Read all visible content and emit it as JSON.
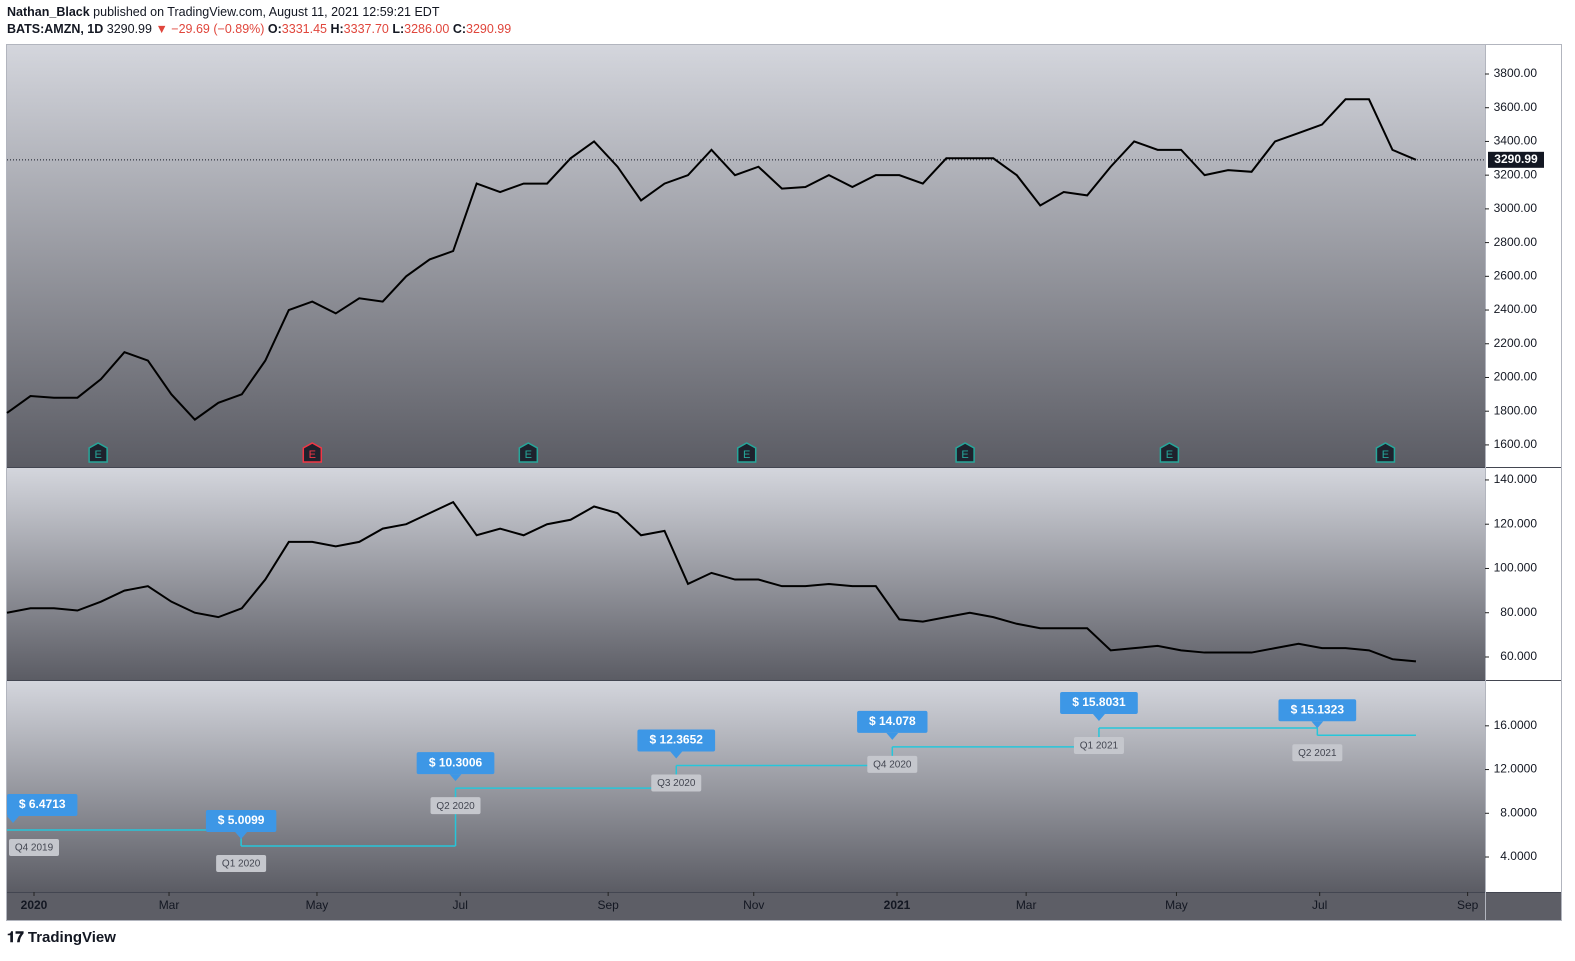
{
  "header": {
    "author": "Nathan_Black",
    "published": "published on TradingView.com, August 11, 2021 12:59:21 EDT",
    "symbol": "BATS:AMZN, 1D",
    "last": "3290.99",
    "change": "▼ −29.69 (−0.89%)",
    "ohlc": [
      {
        "label": "O:",
        "value": "3331.45"
      },
      {
        "label": "H:",
        "value": "3337.70"
      },
      {
        "label": "L:",
        "value": "3286.00"
      },
      {
        "label": "C:",
        "value": "3290.99"
      }
    ]
  },
  "footer": {
    "brand": "TradingView"
  },
  "xaxis": {
    "xlim": [
      0,
      62.94
    ],
    "xticks": [
      {
        "value": 1.15,
        "label": "2020"
      },
      {
        "value": 6.9,
        "label": "Mar"
      },
      {
        "value": 13.2,
        "label": "May"
      },
      {
        "value": 19.3,
        "label": "Jul"
      },
      {
        "value": 25.6,
        "label": "Sep"
      },
      {
        "value": 31.8,
        "label": "Nov"
      },
      {
        "value": 37.9,
        "label": "2021"
      },
      {
        "value": 43.4,
        "label": "Mar"
      },
      {
        "value": 49.8,
        "label": "May"
      },
      {
        "value": 55.9,
        "label": "Jul"
      },
      {
        "value": 62.2,
        "label": "Sep"
      }
    ]
  },
  "chart_data": [
    {
      "type": "line",
      "color": "#000000",
      "values": [
        1790,
        1890,
        1880,
        1880,
        1990,
        2150,
        2100,
        1900,
        1750,
        1850,
        1900,
        2100,
        2400,
        2450,
        2380,
        2470,
        2450,
        2600,
        2700,
        2750,
        3150,
        3100,
        3150,
        3150,
        3300,
        3400,
        3250,
        3050,
        3150,
        3200,
        3350,
        3200,
        3250,
        3120,
        3130,
        3200,
        3130,
        3200,
        3200,
        3150,
        3300,
        3300,
        3300,
        3200,
        3020,
        3100,
        3080,
        3250,
        3400,
        3350,
        3350,
        3200,
        3230,
        3220,
        3400,
        3450,
        3500,
        3650,
        3650,
        3350,
        3290.99
      ],
      "ylim": [
        1469,
        3972
      ],
      "yticks": [
        {
          "value": 1600,
          "label": "1600.00"
        },
        {
          "value": 1800,
          "label": "1800.00"
        },
        {
          "value": 2000,
          "label": "2000.00"
        },
        {
          "value": 2200,
          "label": "2200.00"
        },
        {
          "value": 2400,
          "label": "2400.00"
        },
        {
          "value": 2600,
          "label": "2600.00"
        },
        {
          "value": 2800,
          "label": "2800.00"
        },
        {
          "value": 3000,
          "label": "3000.00"
        },
        {
          "value": 3200,
          "label": "3200.00"
        },
        {
          "value": 3400,
          "label": "3400.00"
        },
        {
          "value": 3600,
          "label": "3600.00"
        },
        {
          "value": 3800,
          "label": "3800.00"
        }
      ],
      "earnings": [
        {
          "x": 3.88,
          "label": "E",
          "color": "#26a69a"
        },
        {
          "x": 13.0,
          "label": "E",
          "color": "#f23645"
        },
        {
          "x": 22.2,
          "label": "E",
          "color": "#26a69a"
        },
        {
          "x": 31.5,
          "label": "E",
          "color": "#26a69a"
        },
        {
          "x": 40.8,
          "label": "E",
          "color": "#26a69a"
        },
        {
          "x": 49.5,
          "label": "E",
          "color": "#26a69a"
        },
        {
          "x": 58.7,
          "label": "E",
          "color": "#26a69a"
        }
      ]
    },
    {
      "type": "line",
      "color": "#000000",
      "values": [
        80,
        82,
        82,
        81,
        85,
        90,
        92,
        85,
        80,
        78,
        82,
        95,
        112,
        112,
        110,
        112,
        118,
        120,
        125,
        130,
        115,
        118,
        115,
        120,
        122,
        128,
        125,
        115,
        117,
        93,
        98,
        95,
        95,
        92,
        92,
        93,
        92,
        92,
        77,
        76,
        78,
        80,
        78,
        75,
        73,
        73,
        73,
        63,
        64,
        65,
        63,
        62,
        62,
        62,
        64,
        66,
        64,
        64,
        63,
        59,
        58
      ],
      "ylim": [
        49.6,
        145.4
      ],
      "yticks": [
        {
          "value": 60,
          "label": "60.000"
        },
        {
          "value": 80,
          "label": "80.000"
        },
        {
          "value": 100,
          "label": "100.000"
        },
        {
          "value": 120,
          "label": "120.000"
        },
        {
          "value": 140,
          "label": "140.000"
        }
      ]
    },
    {
      "type": "step",
      "color": "#26c6da",
      "label_color": "#3d97e6",
      "x": [
        0,
        9.97,
        19.1,
        28.5,
        37.7,
        46.5,
        55.8
      ],
      "categories": [
        "Q4 2019",
        "Q1 2020",
        "Q2 2020",
        "Q3 2020",
        "Q4 2020",
        "Q1 2021",
        "Q2 2021"
      ],
      "values": [
        6.4713,
        5.0099,
        10.3006,
        12.3652,
        14.078,
        15.8031,
        15.1323
      ],
      "value_labels": [
        "$ 6.4713",
        "$ 5.0099",
        "$ 10.3006",
        "$ 12.3652",
        "$ 14.078",
        "$ 15.8031",
        "$ 15.1323"
      ],
      "ylim": [
        0.8,
        20.1
      ],
      "yticks": [
        {
          "value": 4,
          "label": "4.0000"
        },
        {
          "value": 8,
          "label": "8.0000"
        },
        {
          "value": 12,
          "label": "12.0000"
        },
        {
          "value": 16,
          "label": "16.0000"
        }
      ]
    }
  ]
}
